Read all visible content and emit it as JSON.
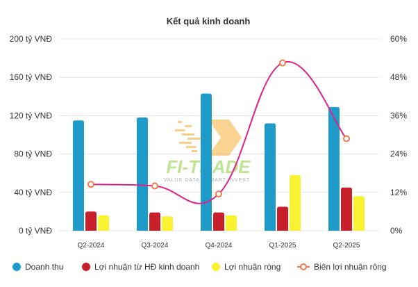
{
  "chart_data": {
    "type": "bar",
    "title": "Kết quả kinh doanh",
    "categories": [
      "Q2-2024",
      "Q3-2024",
      "Q4-2024",
      "Q1-2025",
      "Q2-2025"
    ],
    "y_left": {
      "ticks": [
        "0 tỷ VNĐ",
        "40 tỷ VNĐ",
        "80 tỷ VNĐ",
        "120 tỷ VNĐ",
        "160 tỷ VNĐ",
        "200 tỷ VNĐ"
      ],
      "range": [
        0,
        200
      ]
    },
    "y_right": {
      "ticks": [
        "0%",
        "12%",
        "24%",
        "36%",
        "48%",
        "60%"
      ],
      "range": [
        0,
        60
      ]
    },
    "series": [
      {
        "name": "Doanh thu",
        "kind": "bar",
        "color": "#1f9bc9",
        "values": [
          115,
          118,
          143,
          112,
          129
        ]
      },
      {
        "name": "Lợi nhuận từ HĐ kinh doanh",
        "kind": "bar",
        "color": "#c8202b",
        "values": [
          20,
          19,
          19,
          25,
          45
        ]
      },
      {
        "name": "Lợi nhuận ròng",
        "kind": "bar",
        "color": "#f8f230",
        "values": [
          16,
          15,
          16,
          58,
          36
        ]
      },
      {
        "name": "Biên lợi nhuận ròng",
        "kind": "line",
        "axis": "right",
        "color": "#e0218a",
        "marker_color": "#f07a4e",
        "values": [
          14.5,
          14.0,
          11.5,
          52.5,
          28.8
        ]
      }
    ],
    "grid": true,
    "legend_position": "bottom"
  },
  "watermark": {
    "text": "FI-TRADE",
    "tagline": "VALUE DATA · SMART INVEST"
  }
}
